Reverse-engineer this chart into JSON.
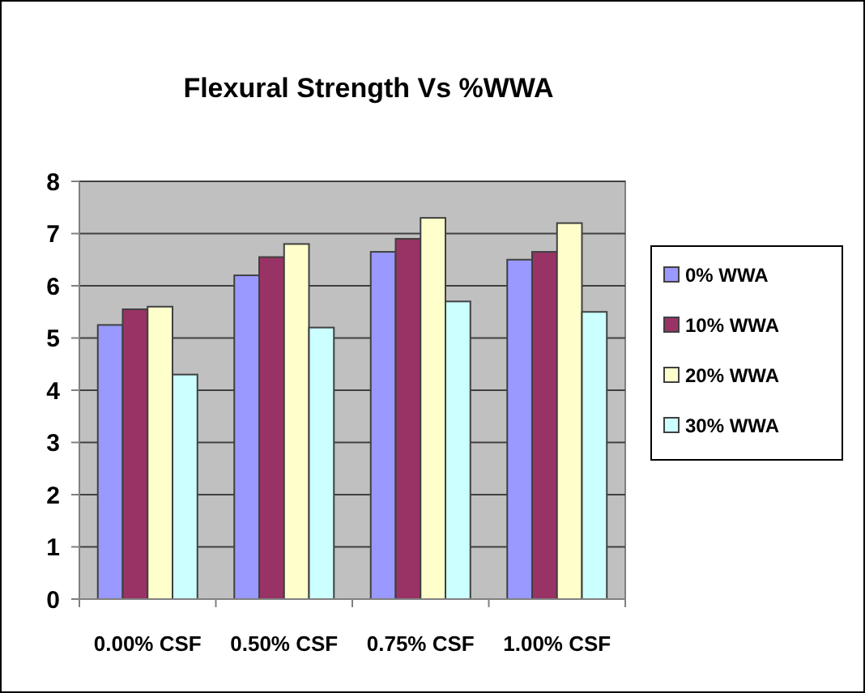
{
  "chart_data": {
    "type": "bar",
    "title": "Flexural Strength Vs %WWA",
    "categories": [
      "0.00% CSF",
      "0.50% CSF",
      "0.75% CSF",
      "1.00% CSF"
    ],
    "series": [
      {
        "name": "0% WWA",
        "color": "#9999ff",
        "values": [
          5.25,
          6.2,
          6.65,
          6.5
        ]
      },
      {
        "name": "10% WWA",
        "color": "#993366",
        "values": [
          5.55,
          6.55,
          6.9,
          6.65
        ]
      },
      {
        "name": "20% WWA",
        "color": "#ffffcc",
        "values": [
          5.6,
          6.8,
          7.3,
          7.2
        ]
      },
      {
        "name": "30% WWA",
        "color": "#ccffff",
        "values": [
          4.3,
          5.2,
          5.7,
          5.5
        ]
      }
    ],
    "ylim": [
      0,
      8
    ],
    "yticks": [
      0,
      1,
      2,
      3,
      4,
      5,
      6,
      7,
      8
    ],
    "grid": "y",
    "legend": "right"
  }
}
